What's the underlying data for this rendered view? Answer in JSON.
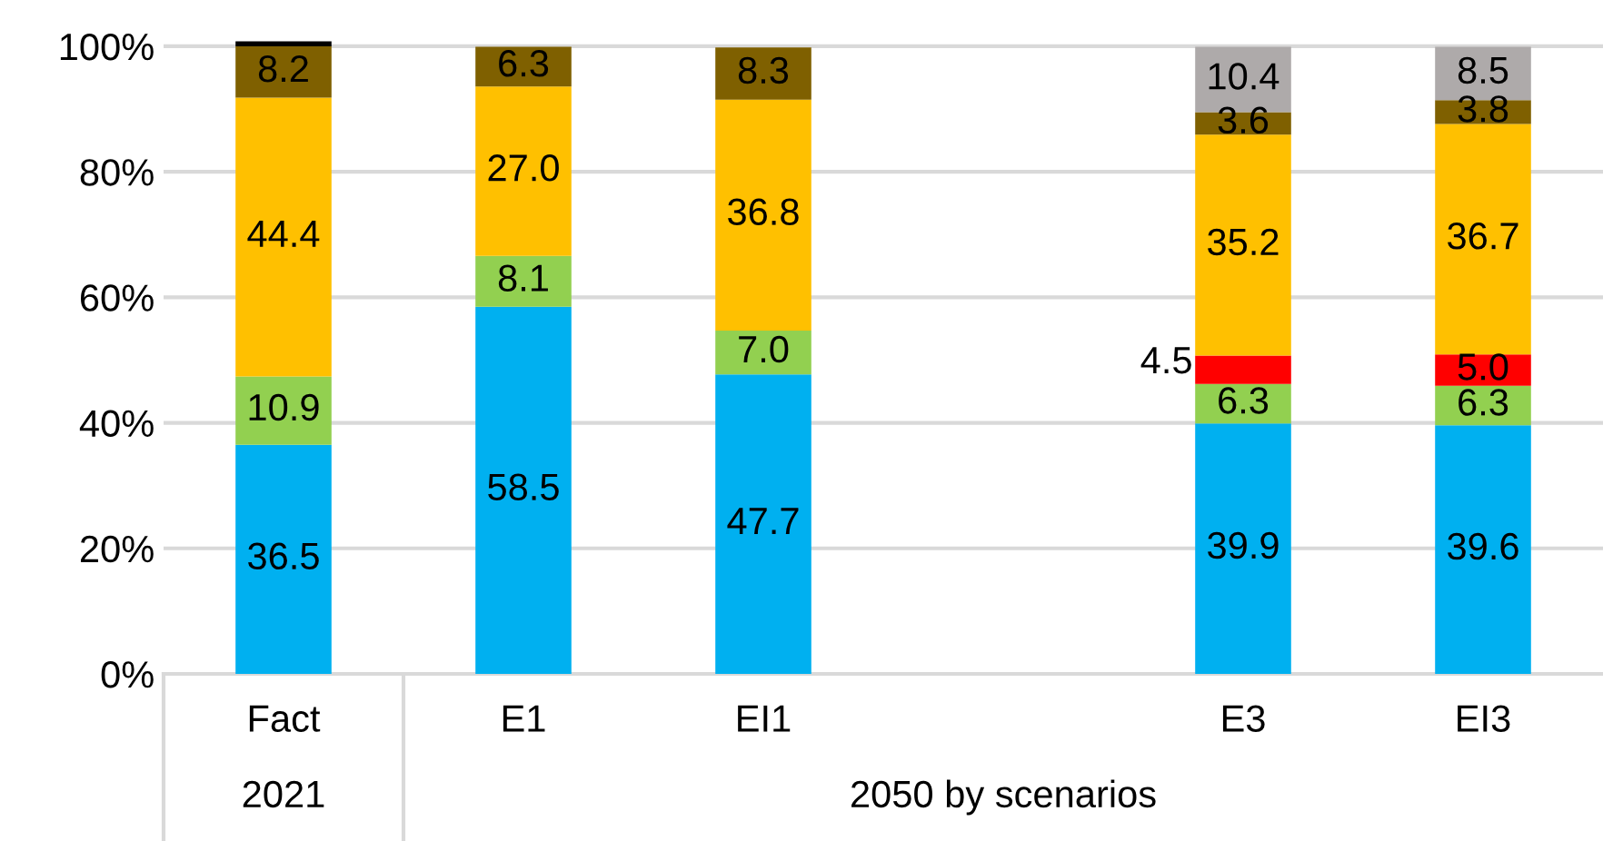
{
  "chart_data": {
    "type": "bar",
    "stacked": true,
    "categories": [
      "Fact",
      "E1",
      "EI1",
      null,
      "E3",
      "EI3"
    ],
    "series": [
      {
        "color": "#00b0f0",
        "values": [
          36.5,
          58.5,
          47.7,
          null,
          39.9,
          39.6
        ],
        "value_labels": [
          "36.5",
          "58.5",
          "47.7",
          null,
          "39.9",
          "39.6"
        ]
      },
      {
        "color": "#92d050",
        "values": [
          10.9,
          8.1,
          7.0,
          null,
          6.3,
          6.3
        ],
        "value_labels": [
          "10.9",
          "8.1",
          "7.0",
          null,
          "6.3",
          "6.3"
        ]
      },
      {
        "color": "#ff0000",
        "values": [
          null,
          null,
          null,
          null,
          4.5,
          5.0
        ],
        "value_labels": [
          null,
          null,
          null,
          null,
          "4.5",
          "5.0"
        ]
      },
      {
        "color": "#ffc000",
        "values": [
          44.4,
          27.0,
          36.8,
          null,
          35.2,
          36.7
        ],
        "value_labels": [
          "44.4",
          "27.0",
          "36.8",
          null,
          "35.2",
          "36.7"
        ]
      },
      {
        "color": "#7f6000",
        "values": [
          8.2,
          6.3,
          8.3,
          null,
          3.6,
          3.8
        ],
        "value_labels": [
          "8.2",
          "6.3",
          "8.3",
          null,
          "3.6",
          "3.8"
        ]
      },
      {
        "color": "#aeaaaa",
        "values": [
          null,
          null,
          null,
          null,
          10.4,
          8.5
        ],
        "value_labels": [
          null,
          null,
          null,
          null,
          "10.4",
          "8.5"
        ]
      },
      {
        "color": "#000000",
        "values": [
          0.8,
          null,
          null,
          null,
          null,
          null
        ]
      }
    ],
    "ylim": [
      0,
      101
    ],
    "yticks": [
      {
        "value": 0,
        "label": "0%"
      },
      {
        "value": 20,
        "label": "20%"
      },
      {
        "value": 40,
        "label": "40%"
      },
      {
        "value": 60,
        "label": "60%"
      },
      {
        "value": 80,
        "label": "80%"
      },
      {
        "value": 100,
        "label": "100%"
      }
    ],
    "grid": "y",
    "annotations": [
      "2021",
      "2050 by scenarios"
    ]
  }
}
